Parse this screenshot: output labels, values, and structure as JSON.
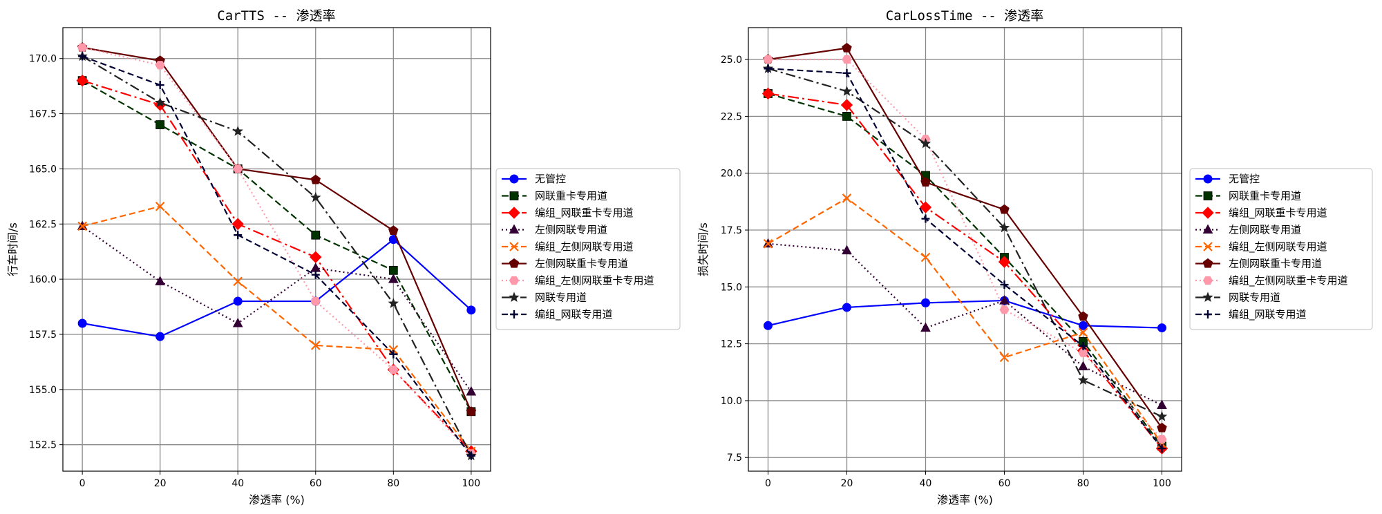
{
  "chart_data": [
    {
      "type": "line",
      "title": "CarTTS -- 渗透率",
      "xlabel": "渗透率 (%)",
      "ylabel": "行车时间/s",
      "x": [
        0,
        20,
        40,
        60,
        80,
        100
      ],
      "xlim": [
        -5,
        105
      ],
      "ylim": [
        151.3,
        171.4
      ],
      "xticks": [
        0,
        20,
        40,
        60,
        80,
        100
      ],
      "yticks": [
        152.5,
        155.0,
        157.5,
        160.0,
        162.5,
        165.0,
        167.5,
        170.0
      ],
      "ytick_labels": [
        "152.5",
        "155.0",
        "157.5",
        "160.0",
        "162.5",
        "165.0",
        "167.5",
        "170.0"
      ],
      "xtick_labels": [
        "0",
        "20",
        "40",
        "60",
        "80",
        "100"
      ],
      "grid": true,
      "legend_position": "outside-right",
      "series": [
        {
          "name": "无管控",
          "values": [
            158.0,
            157.4,
            159.0,
            159.0,
            161.8,
            158.6
          ]
        },
        {
          "name": "网联重卡专用道",
          "values": [
            169.0,
            167.0,
            165.0,
            162.0,
            160.4,
            154.0
          ]
        },
        {
          "name": "编组_网联重卡专用道",
          "values": [
            169.0,
            167.9,
            162.5,
            161.0,
            155.9,
            152.2
          ]
        },
        {
          "name": "左侧网联专用道",
          "values": [
            162.4,
            159.9,
            158.0,
            160.5,
            160.0,
            154.9
          ]
        },
        {
          "name": "编组_左侧网联专用道",
          "values": [
            162.4,
            163.3,
            159.9,
            157.0,
            156.8,
            152.2
          ]
        },
        {
          "name": "左侧网联重卡专用道",
          "values": [
            170.5,
            169.9,
            165.0,
            164.5,
            162.2,
            154.0
          ]
        },
        {
          "name": "编组_左侧网联重卡专用道",
          "values": [
            170.5,
            169.7,
            165.0,
            159.0,
            155.9,
            152.1
          ]
        },
        {
          "name": "网联专用道",
          "values": [
            170.1,
            168.0,
            166.7,
            163.7,
            158.9,
            152.0
          ]
        },
        {
          "name": "编组_网联专用道",
          "values": [
            170.1,
            168.8,
            162.0,
            160.2,
            156.6,
            152.0
          ]
        }
      ]
    },
    {
      "type": "line",
      "title": "CarLossTime -- 渗透率",
      "xlabel": "渗透率 (%)",
      "ylabel": "损失时间/s",
      "x": [
        0,
        20,
        40,
        60,
        80,
        100
      ],
      "xlim": [
        -5,
        105
      ],
      "ylim": [
        6.9,
        26.4
      ],
      "xticks": [
        0,
        20,
        40,
        60,
        80,
        100
      ],
      "yticks": [
        7.5,
        10.0,
        12.5,
        15.0,
        17.5,
        20.0,
        22.5,
        25.0
      ],
      "ytick_labels": [
        "7.5",
        "10.0",
        "12.5",
        "15.0",
        "17.5",
        "20.0",
        "22.5",
        "25.0"
      ],
      "xtick_labels": [
        "0",
        "20",
        "40",
        "60",
        "80",
        "100"
      ],
      "grid": true,
      "legend_position": "outside-right",
      "series": [
        {
          "name": "无管控",
          "values": [
            13.3,
            14.1,
            14.3,
            14.4,
            13.3,
            13.2
          ]
        },
        {
          "name": "网联重卡专用道",
          "values": [
            23.5,
            22.5,
            19.9,
            16.3,
            12.6,
            8.0
          ]
        },
        {
          "name": "编组_网联重卡专用道",
          "values": [
            23.5,
            23.0,
            18.5,
            16.1,
            12.2,
            7.9
          ]
        },
        {
          "name": "左侧网联专用道",
          "values": [
            16.9,
            16.6,
            13.2,
            14.4,
            11.5,
            9.8
          ]
        },
        {
          "name": "编组_左侧网联专用道",
          "values": [
            16.9,
            18.9,
            16.3,
            11.9,
            13.0,
            8.1
          ]
        },
        {
          "name": "左侧网联重卡专用道",
          "values": [
            25.0,
            25.5,
            19.6,
            18.4,
            13.7,
            8.8
          ]
        },
        {
          "name": "编组_左侧网联重卡专用道",
          "values": [
            25.0,
            25.0,
            21.5,
            14.0,
            12.1,
            8.3
          ]
        },
        {
          "name": "网联专用道",
          "values": [
            24.6,
            23.6,
            21.3,
            17.6,
            10.9,
            9.3
          ]
        },
        {
          "name": "编组_网联专用道",
          "values": [
            24.6,
            24.4,
            18.0,
            15.1,
            12.4,
            7.9
          ]
        }
      ]
    }
  ],
  "series_styles": [
    {
      "color": "#0000ff",
      "dash": "",
      "marker": "circle",
      "fill": "#0000ff"
    },
    {
      "color": "#003300",
      "dash": "10,5",
      "marker": "square",
      "fill": "#003300"
    },
    {
      "color": "#ff0000",
      "dash": "16,5,3,5",
      "marker": "diamond",
      "fill": "#ff0000"
    },
    {
      "color": "#330033",
      "dash": "2,4",
      "marker": "triangle",
      "fill": "#330033"
    },
    {
      "color": "#ff6600",
      "dash": "9,5",
      "marker": "x",
      "fill": "#ff6600"
    },
    {
      "color": "#660000",
      "dash": "",
      "marker": "pentagon",
      "fill": "#660000"
    },
    {
      "color": "#ff99aa",
      "dash": "2,4",
      "marker": "hexagon",
      "fill": "#ff99aa"
    },
    {
      "color": "#222222",
      "dash": "14,5,3,5",
      "marker": "star",
      "fill": "#222222"
    },
    {
      "color": "#000033",
      "dash": "9,5",
      "marker": "plus",
      "fill": "#000033"
    }
  ]
}
